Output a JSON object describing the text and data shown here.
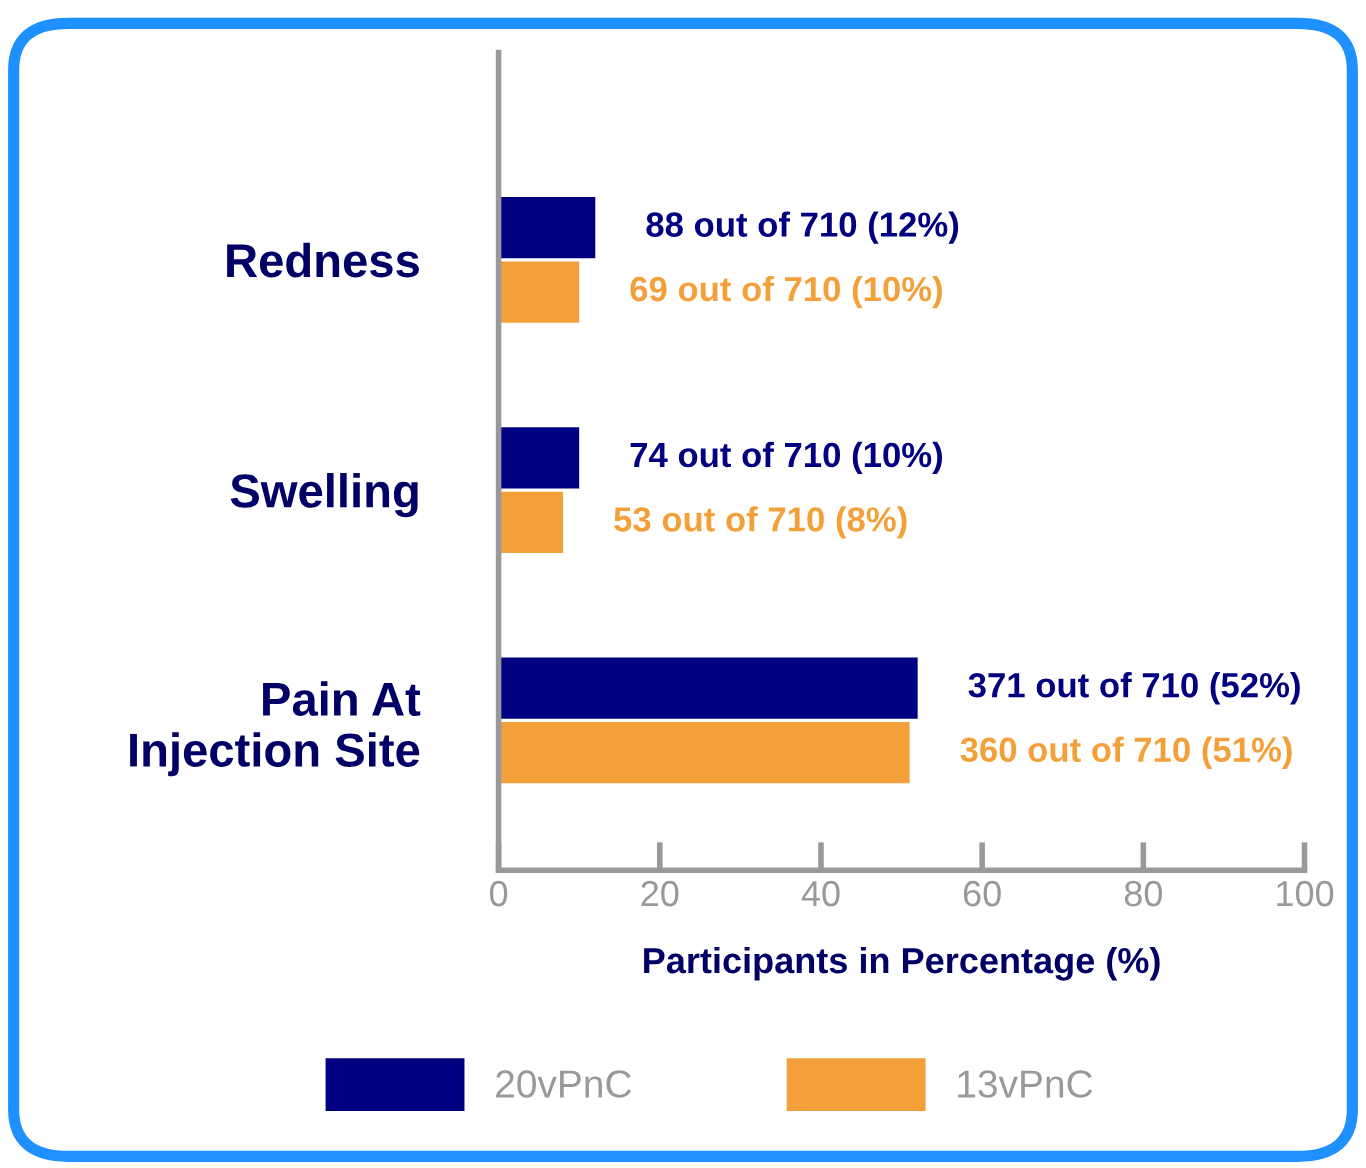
{
  "chart_data": {
    "type": "bar",
    "orientation": "horizontal",
    "xlabel": "Participants in Percentage (%)",
    "categories": [
      "Redness",
      "Swelling",
      "Pain At\nInjection Site"
    ],
    "series": [
      {
        "name": "20vPnC",
        "color": "#000080",
        "values": [
          12,
          10,
          52
        ],
        "value_labels": [
          "88 out of 710 (12%)",
          "74 out of 710 (10%)",
          "371 out of 710 (52%)"
        ]
      },
      {
        "name": "13vPnC",
        "color": "#f4a03a",
        "values": [
          10,
          8,
          51
        ],
        "value_labels": [
          "69 out of 710 (10%)",
          "53 out of 710 (8%)",
          "360 out of 710 (51%)"
        ]
      }
    ],
    "xlim": [
      0,
      100
    ],
    "xticks": [
      0,
      20,
      40,
      60,
      80,
      100
    ],
    "grid": false,
    "legend": "bottom"
  }
}
